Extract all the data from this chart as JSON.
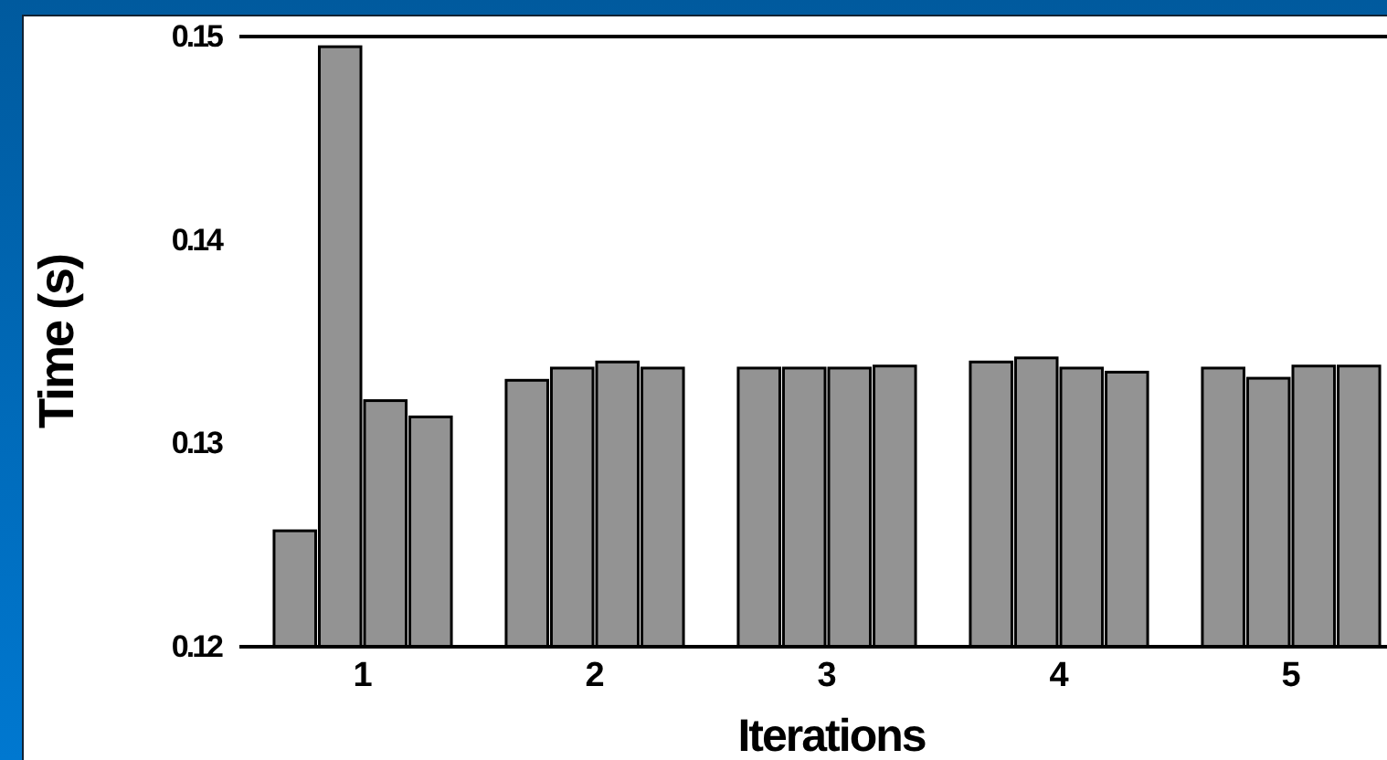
{
  "chart_data": {
    "type": "bar",
    "xlabel": "Iterations",
    "ylabel": "Time (s)",
    "categories": [
      "1",
      "2",
      "3",
      "4",
      "5"
    ],
    "series": [
      {
        "color": "#939393",
        "values": [
          0.1257,
          0.1331,
          0.1337,
          0.134,
          0.1337
        ]
      },
      {
        "color": "#939393",
        "values": [
          0.1495,
          0.1337,
          0.1337,
          0.1342,
          0.1332
        ]
      },
      {
        "color": "#939393",
        "values": [
          0.1321,
          0.134,
          0.1337,
          0.1337,
          0.1338
        ]
      },
      {
        "color": "#939393",
        "values": [
          0.1313,
          0.1337,
          0.1338,
          0.1335,
          0.1338
        ]
      }
    ],
    "ylim": [
      0.12,
      0.15
    ],
    "yticks": [
      {
        "value": 0.12,
        "label": "0.12"
      },
      {
        "value": 0.13,
        "label": "0.13"
      },
      {
        "value": 0.14,
        "label": "0.14"
      },
      {
        "value": 0.15,
        "label": "0.15"
      }
    ],
    "grid": false
  }
}
